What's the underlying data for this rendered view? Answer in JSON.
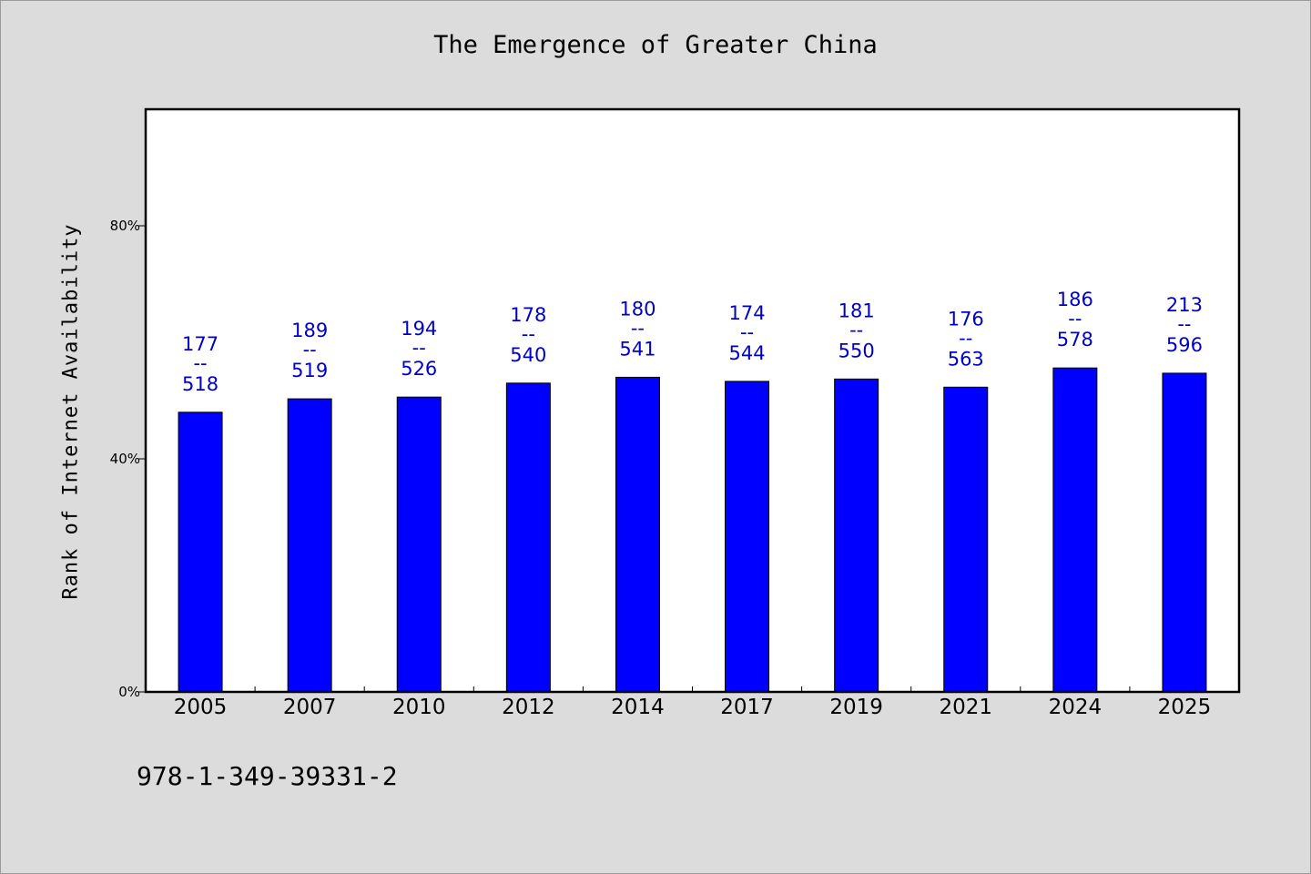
{
  "chart_data": {
    "type": "bar",
    "title": "The Emergence of Greater China",
    "xlabel": "",
    "ylabel": "Rank of Internet Availability",
    "categories": [
      "2005",
      "2007",
      "2010",
      "2012",
      "2014",
      "2017",
      "2019",
      "2021",
      "2024",
      "2025"
    ],
    "values": [
      48,
      50.3,
      50.6,
      53,
      54,
      53.3,
      53.7,
      52.3,
      55.6,
      54.7
    ],
    "labels_top": [
      "177",
      "189",
      "194",
      "178",
      "180",
      "174",
      "181",
      "176",
      "186",
      "213"
    ],
    "labels_sep": "--",
    "labels_bottom": [
      "518",
      "519",
      "526",
      "540",
      "541",
      "544",
      "550",
      "563",
      "578",
      "596"
    ],
    "ylim": [
      0,
      100
    ],
    "yticks": [
      0,
      40,
      80
    ],
    "ytick_labels": [
      "0%",
      "40%",
      "80%"
    ],
    "bar_color": "#0000ff",
    "label_color": "#0000cc",
    "grid": false,
    "legend": "none"
  },
  "footer": {
    "code": "978-1-349-39331-2"
  }
}
